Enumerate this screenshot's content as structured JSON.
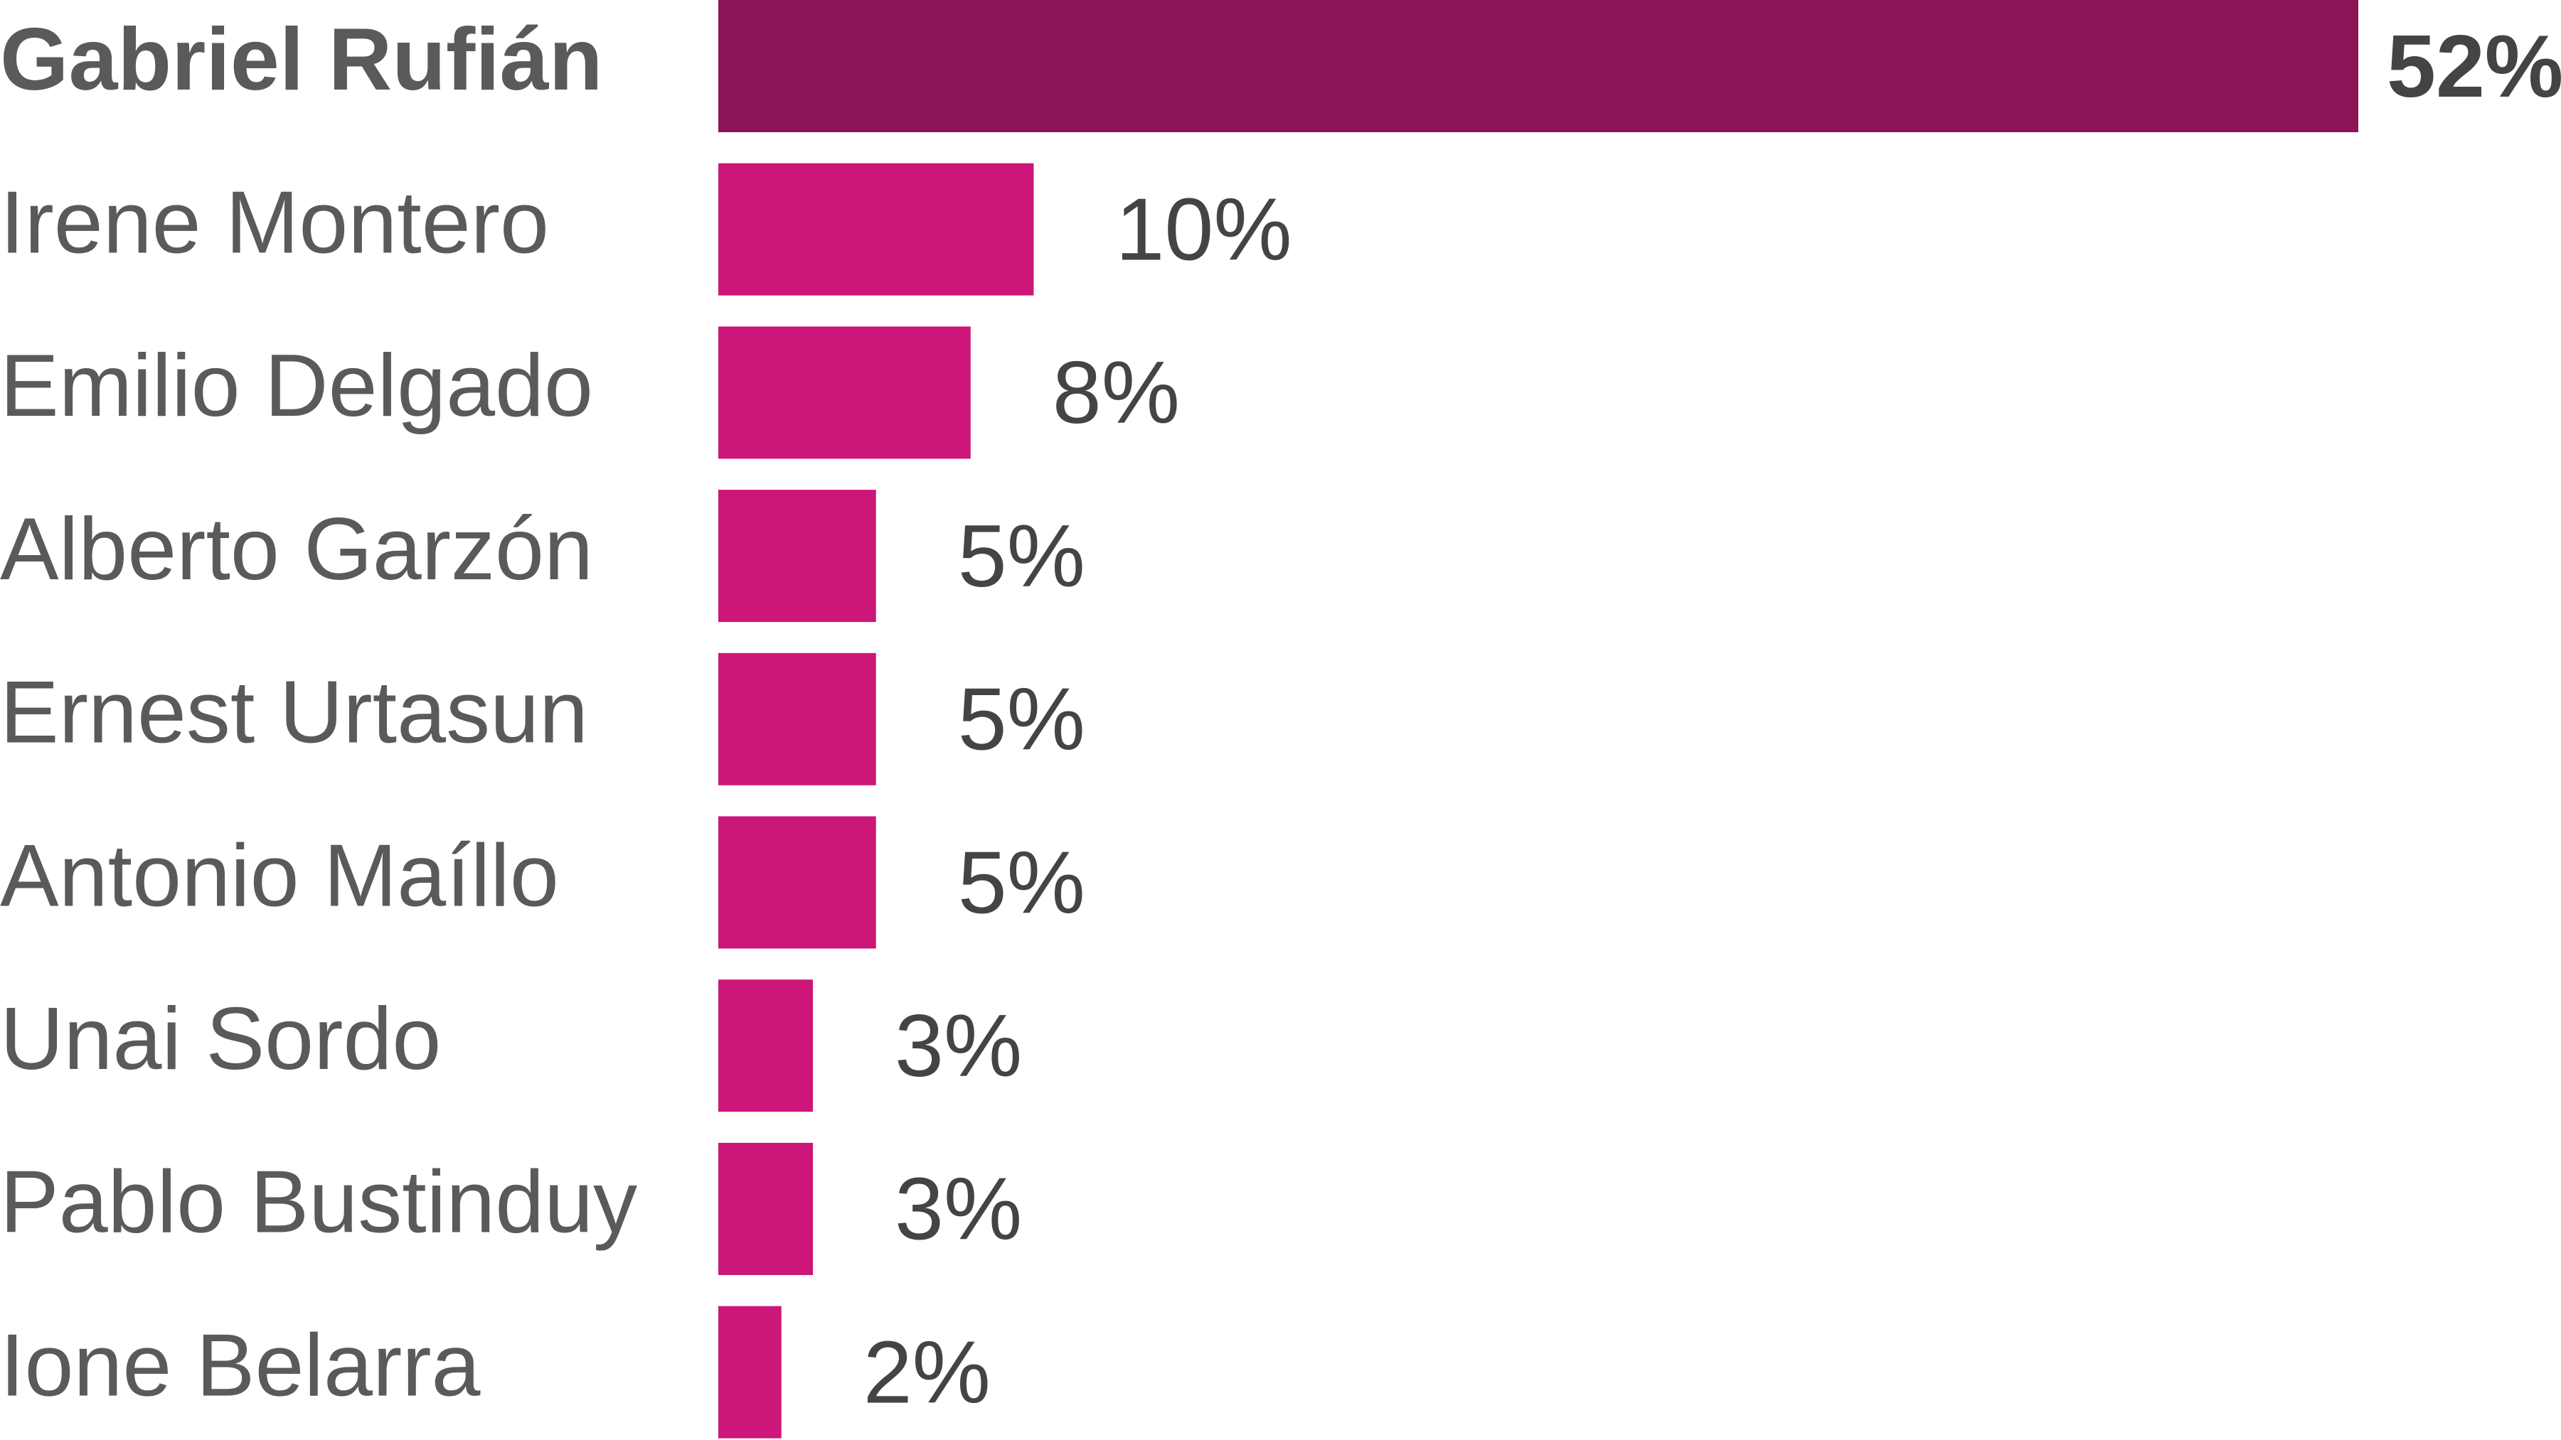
{
  "chart_data": {
    "type": "bar",
    "orientation": "horizontal",
    "categories": [
      "Gabriel Rufián",
      "Irene Montero",
      "Emilio Delgado",
      "Alberto Garzón",
      "Ernest Urtasun",
      "Antonio Maíllo",
      "Unai Sordo",
      "Pablo Bustinduy",
      "Ione Belarra"
    ],
    "values": [
      52,
      10,
      8,
      5,
      5,
      5,
      3,
      3,
      2
    ],
    "value_labels": [
      "52%",
      "10%",
      "8%",
      "5%",
      "5%",
      "5%",
      "3%",
      "3%",
      "2%"
    ],
    "colors": [
      "#8b1557",
      "#cc1679",
      "#cc1679",
      "#cc1679",
      "#cc1679",
      "#cc1679",
      "#cc1679",
      "#cc1679",
      "#cc1679"
    ]
  }
}
